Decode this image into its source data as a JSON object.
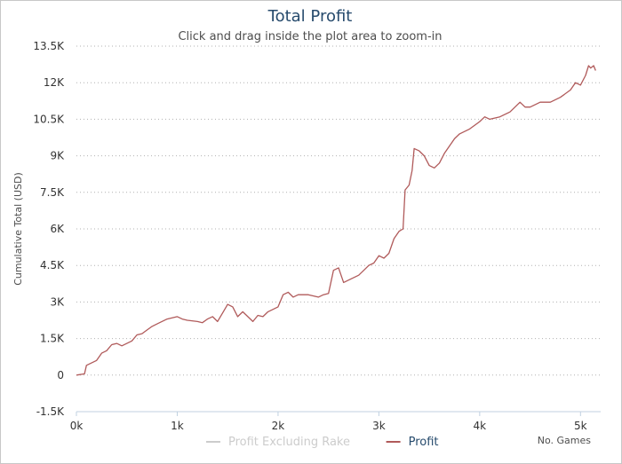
{
  "chart_data": {
    "type": "line",
    "title": "Total Profit",
    "subtitle": "Click and drag inside the plot area to zoom-in",
    "ylabel": "Cumulative Total (USD)",
    "xlabel": "No. Games",
    "xlim": [
      0,
      5200
    ],
    "ylim": [
      -1500,
      13500
    ],
    "x_ticks": [
      {
        "value": 0,
        "label": "0k"
      },
      {
        "value": 1000,
        "label": "1k"
      },
      {
        "value": 2000,
        "label": "2k"
      },
      {
        "value": 3000,
        "label": "3k"
      },
      {
        "value": 4000,
        "label": "4k"
      },
      {
        "value": 5000,
        "label": "5k"
      }
    ],
    "y_ticks": [
      {
        "value": -1500,
        "label": "-1.5K"
      },
      {
        "value": 0,
        "label": "0"
      },
      {
        "value": 1500,
        "label": "1.5K"
      },
      {
        "value": 3000,
        "label": "3K"
      },
      {
        "value": 4500,
        "label": "4.5K"
      },
      {
        "value": 6000,
        "label": "6K"
      },
      {
        "value": 7500,
        "label": "7.5K"
      },
      {
        "value": 9000,
        "label": "9K"
      },
      {
        "value": 10500,
        "label": "10.5K"
      },
      {
        "value": 12000,
        "label": "12K"
      },
      {
        "value": 13500,
        "label": "13.5K"
      }
    ],
    "grid": "horizontal-dotted",
    "legend_position": "bottom-center",
    "series": [
      {
        "name": "Profit Excluding Rake",
        "color": "#cccccc",
        "visible": false,
        "x": [],
        "y": []
      },
      {
        "name": "Profit",
        "color": "#b05a5a",
        "visible": true,
        "x": [
          0,
          80,
          100,
          200,
          250,
          300,
          350,
          400,
          450,
          550,
          600,
          650,
          700,
          750,
          800,
          900,
          1000,
          1050,
          1100,
          1200,
          1250,
          1300,
          1350,
          1400,
          1450,
          1500,
          1550,
          1600,
          1650,
          1700,
          1750,
          1800,
          1850,
          1900,
          2000,
          2050,
          2100,
          2150,
          2200,
          2300,
          2400,
          2450,
          2500,
          2550,
          2600,
          2650,
          2700,
          2750,
          2800,
          2850,
          2900,
          2950,
          3000,
          3050,
          3100,
          3150,
          3200,
          3240,
          3260,
          3300,
          3330,
          3350,
          3400,
          3450,
          3500,
          3550,
          3600,
          3650,
          3700,
          3750,
          3800,
          3900,
          4000,
          4050,
          4100,
          4200,
          4300,
          4400,
          4450,
          4500,
          4550,
          4600,
          4700,
          4800,
          4900,
          4950,
          5000,
          5050,
          5080,
          5100,
          5130,
          5150
        ],
        "y": [
          0,
          50,
          400,
          600,
          900,
          1000,
          1250,
          1300,
          1200,
          1400,
          1650,
          1700,
          1850,
          2000,
          2100,
          2300,
          2400,
          2300,
          2250,
          2200,
          2150,
          2300,
          2400,
          2200,
          2550,
          2900,
          2800,
          2400,
          2600,
          2400,
          2200,
          2450,
          2400,
          2600,
          2800,
          3300,
          3400,
          3200,
          3300,
          3300,
          3200,
          3300,
          3350,
          4300,
          4400,
          3800,
          3900,
          4000,
          4100,
          4300,
          4500,
          4600,
          4900,
          4800,
          5000,
          5600,
          5900,
          6000,
          7600,
          7800,
          8400,
          9300,
          9200,
          9000,
          8600,
          8500,
          8700,
          9100,
          9400,
          9700,
          9900,
          10100,
          10400,
          10600,
          10500,
          10600,
          10800,
          11200,
          11000,
          11000,
          11100,
          11200,
          11200,
          11400,
          11700,
          12000,
          11900,
          12300,
          12700,
          12600,
          12700,
          12500
        ]
      }
    ]
  }
}
